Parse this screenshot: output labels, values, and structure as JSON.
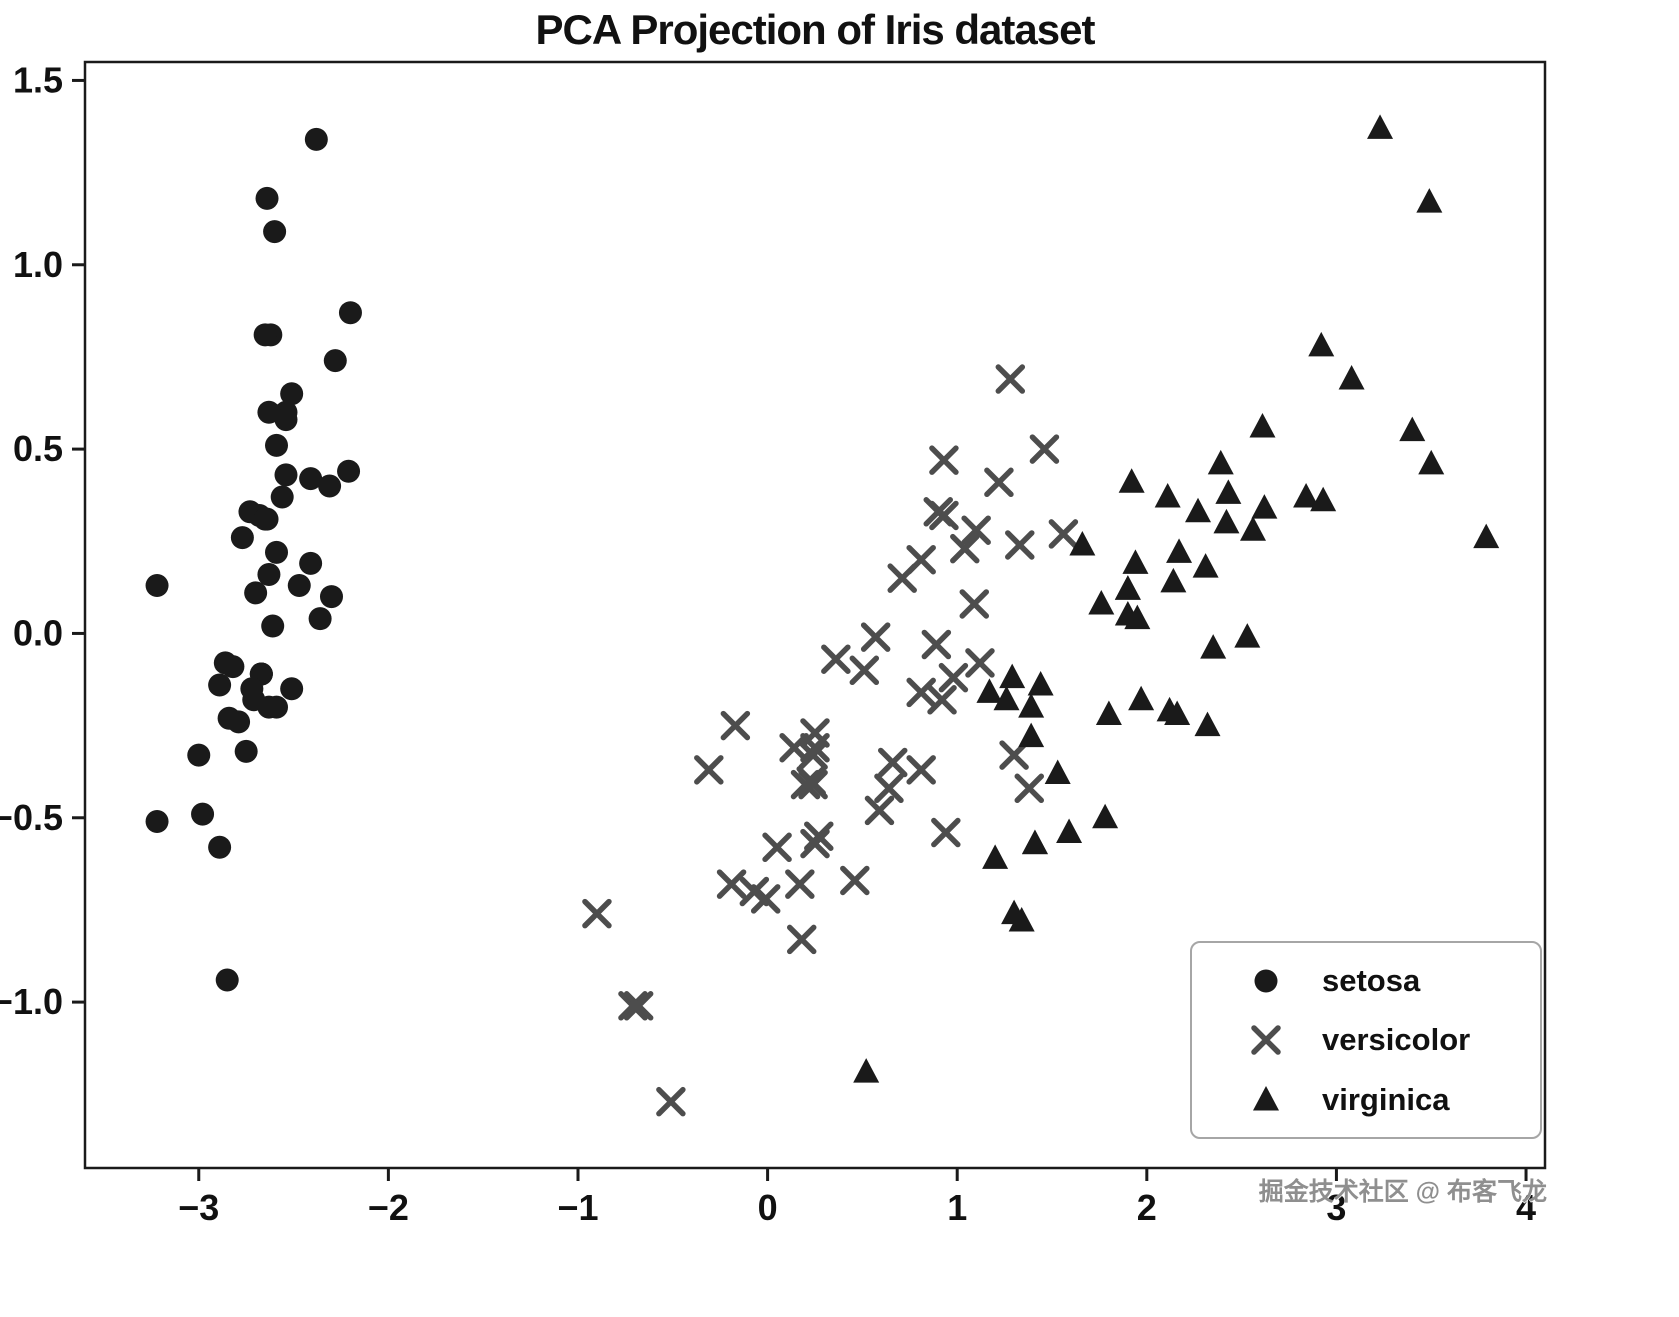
{
  "watermark": "掘金技术社区 @ 布客飞龙",
  "chart_data": {
    "type": "scatter",
    "title": "PCA Projection of Iris dataset",
    "xlabel": "",
    "ylabel": "",
    "xlim": [
      -3.6,
      4.1
    ],
    "ylim": [
      -1.45,
      1.55
    ],
    "x_ticks": [
      -3,
      -2,
      -1,
      0,
      1,
      2,
      3,
      4
    ],
    "x_tick_labels": [
      "−3",
      "−2",
      "−1",
      "0",
      "1",
      "2",
      "3",
      "4"
    ],
    "y_ticks": [
      -1.0,
      -0.5,
      0.0,
      0.5,
      1.0,
      1.5
    ],
    "y_tick_labels": [
      "−1.0",
      "−0.5",
      "0.0",
      "0.5",
      "1.0",
      "1.5"
    ],
    "grid": false,
    "legend_position": "lower right",
    "axis_color": "#1a1a1a",
    "series": [
      {
        "name": "setosa",
        "marker": "circle",
        "color": "#1a1a1a",
        "points": [
          [
            -2.68,
            0.32
          ],
          [
            -2.71,
            -0.18
          ],
          [
            -2.89,
            -0.14
          ],
          [
            -2.75,
            -0.32
          ],
          [
            -2.73,
            0.33
          ],
          [
            -2.28,
            0.74
          ],
          [
            -2.82,
            -0.09
          ],
          [
            -2.63,
            0.16
          ],
          [
            -2.89,
            -0.58
          ],
          [
            -2.67,
            -0.11
          ],
          [
            -2.51,
            0.65
          ],
          [
            -2.61,
            0.02
          ],
          [
            -2.79,
            -0.24
          ],
          [
            -3.22,
            -0.51
          ],
          [
            -2.64,
            1.18
          ],
          [
            -2.38,
            1.34
          ],
          [
            -2.62,
            0.81
          ],
          [
            -2.65,
            0.31
          ],
          [
            -2.2,
            0.87
          ],
          [
            -2.59,
            0.51
          ],
          [
            -2.31,
            0.4
          ],
          [
            -2.54,
            0.43
          ],
          [
            -3.22,
            0.13
          ],
          [
            -2.3,
            0.1
          ],
          [
            -2.36,
            0.04
          ],
          [
            -2.51,
            -0.15
          ],
          [
            -2.47,
            0.13
          ],
          [
            -2.56,
            0.37
          ],
          [
            -2.64,
            0.31
          ],
          [
            -2.63,
            -0.2
          ],
          [
            -2.59,
            -0.2
          ],
          [
            -2.41,
            0.42
          ],
          [
            -2.65,
            0.81
          ],
          [
            -2.6,
            1.09
          ],
          [
            -2.67,
            -0.11
          ],
          [
            -2.86,
            -0.08
          ],
          [
            -2.63,
            0.6
          ],
          [
            -2.67,
            -0.11
          ],
          [
            -2.98,
            -0.49
          ],
          [
            -2.59,
            0.22
          ],
          [
            -2.77,
            0.26
          ],
          [
            -2.85,
            -0.94
          ],
          [
            -3.0,
            -0.33
          ],
          [
            -2.41,
            0.19
          ],
          [
            -2.21,
            0.44
          ],
          [
            -2.72,
            -0.15
          ],
          [
            -2.54,
            0.6
          ],
          [
            -2.84,
            -0.23
          ],
          [
            -2.54,
            0.58
          ],
          [
            -2.7,
            0.11
          ]
        ]
      },
      {
        "name": "versicolor",
        "marker": "x",
        "color": "#4d4d4d",
        "points": [
          [
            1.28,
            0.69
          ],
          [
            0.93,
            0.32
          ],
          [
            1.46,
            0.5
          ],
          [
            0.18,
            -0.83
          ],
          [
            1.09,
            0.08
          ],
          [
            0.64,
            -0.42
          ],
          [
            1.1,
            0.28
          ],
          [
            -0.9,
            -0.76
          ],
          [
            1.04,
            0.23
          ],
          [
            -0.01,
            -0.72
          ],
          [
            -0.51,
            -1.27
          ],
          [
            0.51,
            -0.1
          ],
          [
            0.27,
            -0.55
          ],
          [
            0.98,
            -0.12
          ],
          [
            -0.17,
            -0.25
          ],
          [
            0.93,
            0.47
          ],
          [
            0.66,
            -0.35
          ],
          [
            0.24,
            -0.33
          ],
          [
            0.94,
            -0.54
          ],
          [
            0.05,
            -0.58
          ],
          [
            1.12,
            -0.08
          ],
          [
            0.36,
            -0.07
          ],
          [
            1.3,
            -0.33
          ],
          [
            0.92,
            -0.18
          ],
          [
            0.71,
            0.15
          ],
          [
            0.9,
            0.33
          ],
          [
            1.33,
            0.24
          ],
          [
            1.56,
            0.27
          ],
          [
            0.81,
            -0.16
          ],
          [
            -0.31,
            -0.37
          ],
          [
            -0.07,
            -0.7
          ],
          [
            -0.19,
            -0.68
          ],
          [
            0.14,
            -0.31
          ],
          [
            1.38,
            -0.42
          ],
          [
            0.59,
            -0.48
          ],
          [
            0.81,
            0.2
          ],
          [
            1.22,
            0.41
          ],
          [
            0.81,
            -0.37
          ],
          [
            0.25,
            -0.27
          ],
          [
            0.17,
            -0.68
          ],
          [
            0.46,
            -0.67
          ],
          [
            0.89,
            -0.03
          ],
          [
            0.23,
            -0.4
          ],
          [
            -0.71,
            -1.01
          ],
          [
            0.25,
            -0.57
          ],
          [
            0.2,
            -0.41
          ],
          [
            0.25,
            -0.31
          ],
          [
            0.57,
            -0.01
          ],
          [
            -0.68,
            -1.01
          ],
          [
            0.24,
            -0.41
          ]
        ]
      },
      {
        "name": "virginica",
        "marker": "triangle",
        "color": "#1a1a1a",
        "points": [
          [
            2.53,
            -0.01
          ],
          [
            1.41,
            -0.57
          ],
          [
            2.62,
            0.34
          ],
          [
            1.97,
            -0.18
          ],
          [
            2.35,
            -0.04
          ],
          [
            3.4,
            0.55
          ],
          [
            0.52,
            -1.19
          ],
          [
            2.93,
            0.36
          ],
          [
            2.32,
            -0.25
          ],
          [
            2.92,
            0.78
          ],
          [
            1.66,
            0.24
          ],
          [
            1.8,
            -0.22
          ],
          [
            2.17,
            0.22
          ],
          [
            1.34,
            -0.78
          ],
          [
            1.59,
            -0.54
          ],
          [
            1.9,
            0.12
          ],
          [
            1.95,
            0.04
          ],
          [
            3.49,
            1.17
          ],
          [
            3.79,
            0.26
          ],
          [
            1.3,
            -0.76
          ],
          [
            2.43,
            0.38
          ],
          [
            1.2,
            -0.61
          ],
          [
            3.5,
            0.46
          ],
          [
            1.39,
            -0.2
          ],
          [
            2.27,
            0.33
          ],
          [
            2.61,
            0.56
          ],
          [
            1.26,
            -0.18
          ],
          [
            1.29,
            -0.12
          ],
          [
            2.12,
            -0.21
          ],
          [
            2.39,
            0.46
          ],
          [
            2.84,
            0.37
          ],
          [
            3.23,
            1.37
          ],
          [
            2.16,
            -0.22
          ],
          [
            1.44,
            -0.14
          ],
          [
            1.78,
            -0.5
          ],
          [
            3.08,
            0.69
          ],
          [
            2.14,
            0.14
          ],
          [
            1.9,
            0.05
          ],
          [
            1.17,
            -0.16
          ],
          [
            2.11,
            0.37
          ],
          [
            2.31,
            0.18
          ],
          [
            1.92,
            0.41
          ],
          [
            1.41,
            -0.57
          ],
          [
            2.56,
            0.28
          ],
          [
            2.42,
            0.3
          ],
          [
            1.94,
            0.19
          ],
          [
            1.53,
            -0.38
          ],
          [
            1.76,
            0.08
          ],
          [
            1.9,
            0.12
          ],
          [
            1.39,
            -0.28
          ]
        ]
      }
    ]
  }
}
